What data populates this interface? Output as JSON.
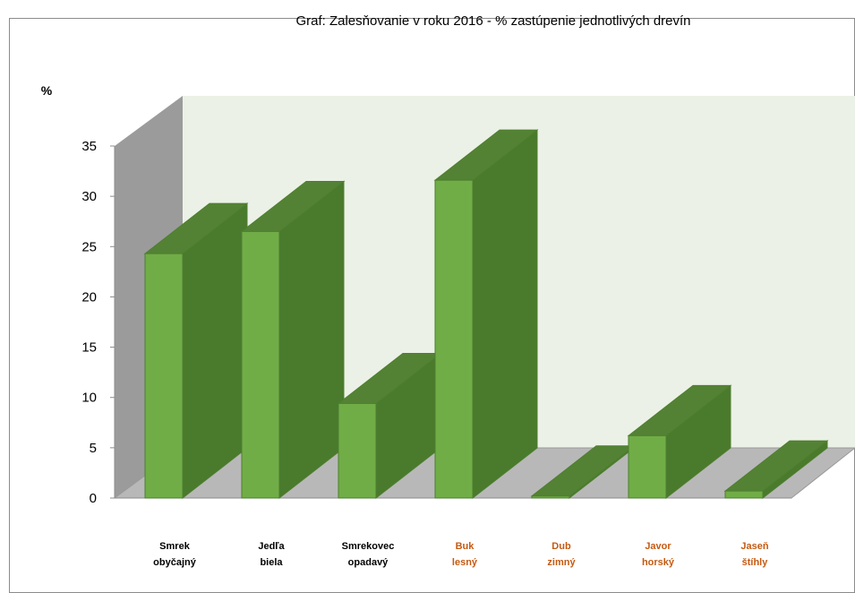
{
  "chart_data": {
    "type": "bar",
    "title": "Graf: Zalesňovanie v roku 2016 - % zastúpenie jednotlivých drevín",
    "ylabel": "%",
    "xlabel": "",
    "ylim": [
      0,
      35
    ],
    "yticks": [
      0,
      5,
      10,
      15,
      20,
      25,
      30,
      35
    ],
    "three_d": true,
    "grid": false,
    "categories": [
      {
        "line1": "Smrek",
        "line2": "obyčajný",
        "group": "conifer"
      },
      {
        "line1": "Jedľa",
        "line2": "biela",
        "group": "conifer"
      },
      {
        "line1": "Smrekovec",
        "line2": "opadavý",
        "group": "conifer"
      },
      {
        "line1": "Buk",
        "line2": "lesný",
        "group": "broadleaf"
      },
      {
        "line1": "Dub",
        "line2": "zimný",
        "group": "broadleaf"
      },
      {
        "line1": "Javor",
        "line2": "horský",
        "group": "broadleaf"
      },
      {
        "line1": "Jaseň",
        "line2": "štíhly",
        "group": "broadleaf"
      }
    ],
    "values": [
      24.3,
      26.5,
      9.4,
      31.6,
      0.2,
      6.2,
      0.7
    ],
    "colors": {
      "bar_front": "#70ad47",
      "bar_top": "#548235",
      "bar_side": "#4a7a2c",
      "bar_edge": "#4e7f2f",
      "back_wall": "#ebf1e6",
      "side_wall": "#9b9b9b",
      "floor": "#b8b8b8",
      "label_conifer": "#000000",
      "label_broadleaf": "#c55a11"
    }
  }
}
